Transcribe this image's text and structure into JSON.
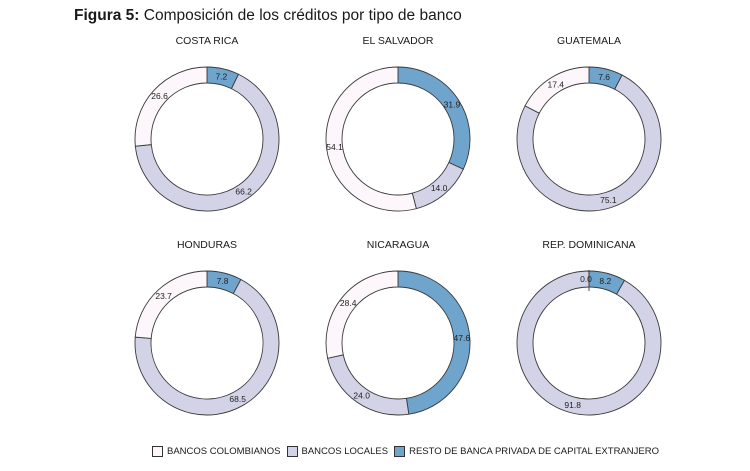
{
  "figure": {
    "label": "Figura 5:",
    "title": "Composición de los créditos por tipo de banco"
  },
  "legend": {
    "items": [
      {
        "label": "BANCOS COLOMBIANOS",
        "color": "#fdf7fb"
      },
      {
        "label": "BANCOS LOCALES",
        "color": "#d3d3e8"
      },
      {
        "label": "RESTO DE BANCA PRIVADA DE CAPITAL EXTRANJERO",
        "color": "#6fa4cc"
      }
    ]
  },
  "chart_data": [
    {
      "type": "pie",
      "title": "COSTA RICA",
      "series": [
        {
          "name": "RESTO DE BANCA PRIVADA DE CAPITAL EXTRANJERO",
          "value": 7.2,
          "label": "7.2"
        },
        {
          "name": "BANCOS LOCALES",
          "value": 66.2,
          "label": "66.2"
        },
        {
          "name": "BANCOS COLOMBIANOS",
          "value": 26.6,
          "label": "26.6"
        }
      ]
    },
    {
      "type": "pie",
      "title": "EL SALVADOR",
      "series": [
        {
          "name": "RESTO DE BANCA PRIVADA DE CAPITAL EXTRANJERO",
          "value": 31.9,
          "label": "31.9"
        },
        {
          "name": "BANCOS LOCALES",
          "value": 14.0,
          "label": "14.0"
        },
        {
          "name": "BANCOS COLOMBIANOS",
          "value": 54.1,
          "label": "54.1"
        }
      ]
    },
    {
      "type": "pie",
      "title": "GUATEMALA",
      "series": [
        {
          "name": "RESTO DE BANCA PRIVADA DE CAPITAL EXTRANJERO",
          "value": 7.6,
          "label": "7.6"
        },
        {
          "name": "BANCOS LOCALES",
          "value": 75.1,
          "label": "75.1"
        },
        {
          "name": "BANCOS COLOMBIANOS",
          "value": 17.4,
          "label": "17.4"
        }
      ]
    },
    {
      "type": "pie",
      "title": "HONDURAS",
      "series": [
        {
          "name": "RESTO DE BANCA PRIVADA DE CAPITAL EXTRANJERO",
          "value": 7.8,
          "label": "7.8"
        },
        {
          "name": "BANCOS LOCALES",
          "value": 68.5,
          "label": "68.5"
        },
        {
          "name": "BANCOS COLOMBIANOS",
          "value": 23.7,
          "label": "23.7"
        }
      ]
    },
    {
      "type": "pie",
      "title": "NICARAGUA",
      "series": [
        {
          "name": "RESTO DE BANCA PRIVADA DE CAPITAL EXTRANJERO",
          "value": 47.6,
          "label": "47.6"
        },
        {
          "name": "BANCOS LOCALES",
          "value": 24.0,
          "label": "24.0"
        },
        {
          "name": "BANCOS COLOMBIANOS",
          "value": 28.4,
          "label": "28.4"
        }
      ]
    },
    {
      "type": "pie",
      "title": "REP. DOMINICANA",
      "series": [
        {
          "name": "RESTO DE BANCA PRIVADA DE CAPITAL EXTRANJERO",
          "value": 8.2,
          "label": "8.2"
        },
        {
          "name": "BANCOS LOCALES",
          "value": 91.8,
          "label": "91.8"
        },
        {
          "name": "BANCOS COLOMBIANOS",
          "value": 0.0,
          "label": "0.0"
        }
      ]
    }
  ]
}
